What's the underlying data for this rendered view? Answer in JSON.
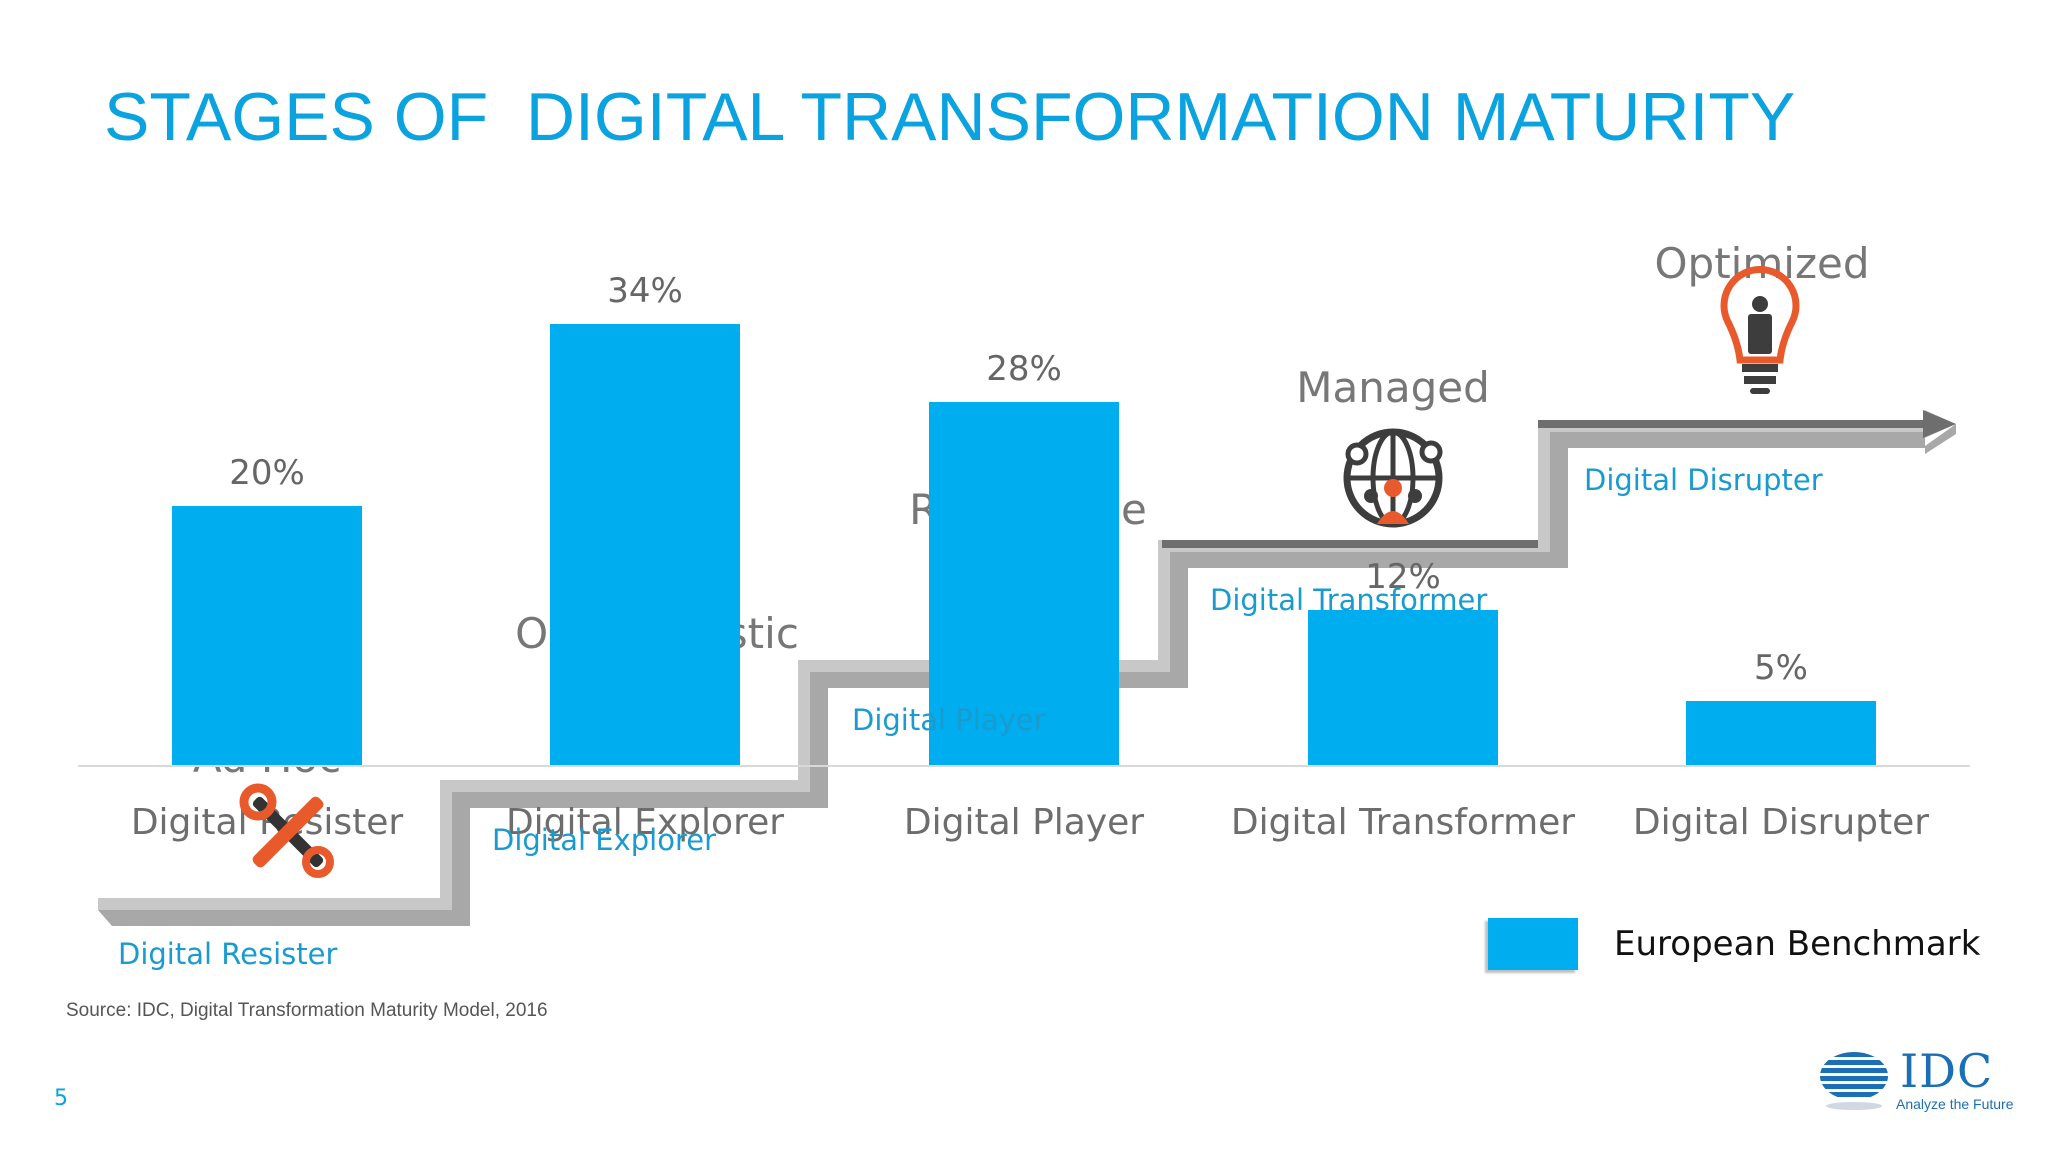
{
  "slide": {
    "title": "STAGES OF  DIGITAL TRANSFORMATION MATURITY",
    "source": "Source: IDC, Digital Transformation Maturity Model, 2016",
    "page_number": "5",
    "logo": {
      "word": "IDC",
      "tagline": "Analyze the Future"
    }
  },
  "colors": {
    "accent": "#0aa3e0",
    "bar": "#00adef",
    "stair": "#9b9b9b",
    "label_gray": "#777777",
    "icon_orange": "#e85a2c"
  },
  "stages": [
    {
      "level": "Ad Hoc",
      "stair_label": "Digital Resister",
      "icon": "wrench-screwdriver-icon"
    },
    {
      "level": "Opportunistic",
      "stair_label": "Digital Explorer",
      "icon": ""
    },
    {
      "level": "Repeatable",
      "stair_label": "Digital Player",
      "icon": ""
    },
    {
      "level": "Managed",
      "stair_label": "Digital Transformer",
      "icon": "global-network-people-icon"
    },
    {
      "level": "Optimized",
      "stair_label": "Digital Disrupter",
      "icon": "lightbulb-person-icon"
    }
  ],
  "chart_data": {
    "type": "bar",
    "categories": [
      "Digital Resister",
      "Digital Explorer",
      "Digital Player",
      "Digital Transformer",
      "Digital Disrupter"
    ],
    "series": [
      {
        "name": "European Benchmark",
        "values": [
          20,
          34,
          28,
          12,
          5
        ]
      }
    ],
    "data_labels": [
      "20%",
      "34%",
      "28%",
      "12%",
      "5%"
    ],
    "title": "",
    "xlabel": "",
    "ylabel": "",
    "ylim": [
      0,
      40
    ],
    "grid": false,
    "legend": "bottom-right"
  }
}
